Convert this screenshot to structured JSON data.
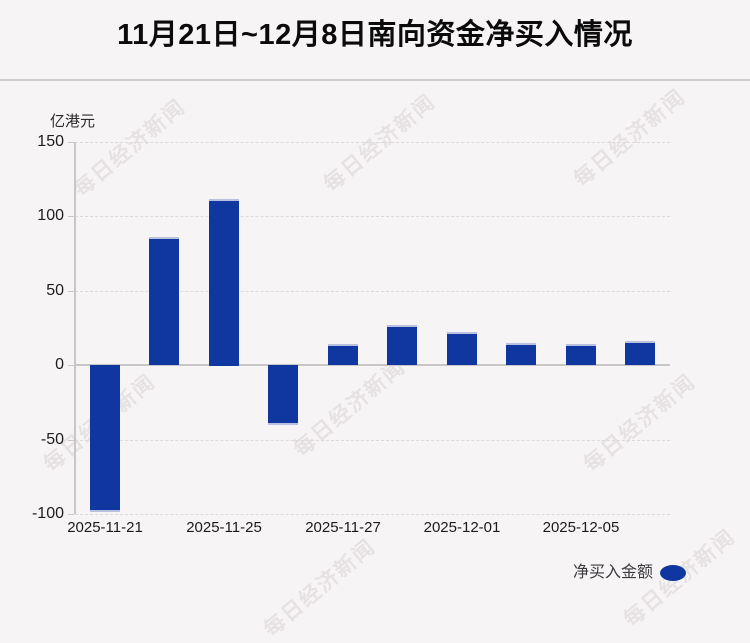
{
  "title": "11月21日~12月8日南向资金净买入情况",
  "watermark": {
    "text": "每日经济新闻"
  },
  "legend": {
    "series_label": "净买入金额"
  },
  "chart_data": {
    "type": "bar",
    "title": "11月21日~12月8日南向资金净买入情况",
    "xlabel": "",
    "ylabel": "亿港元",
    "series_name": "净买入金额",
    "values": [
      -99,
      86,
      112,
      -40,
      14,
      27,
      22,
      15,
      14,
      16
    ],
    "x_tick_labels": [
      "2025-11-21",
      "2025-11-25",
      "2025-11-27",
      "2025-12-01",
      "2025-12-05"
    ],
    "x_tick_bar_indices": [
      0,
      2,
      4,
      6,
      8
    ],
    "y_ticks": [
      150,
      100,
      50,
      0,
      -50,
      -100
    ],
    "ylim": [
      -100,
      150
    ],
    "bar_color": "#10369f",
    "legend_marker_color": "#10369f",
    "grid": "horizontal-dashed",
    "legend_position": "bottom-right"
  }
}
